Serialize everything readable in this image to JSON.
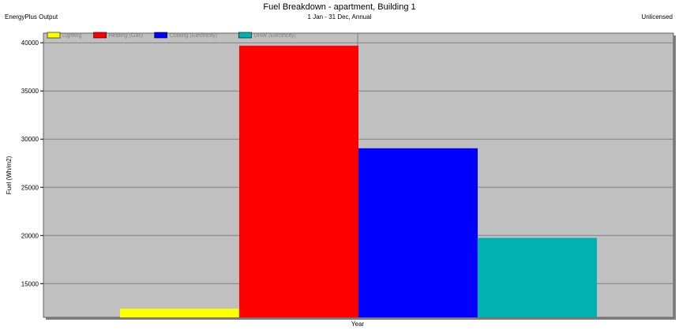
{
  "header": {
    "title": "Fuel Breakdown - apartment, Building 1",
    "subtitle": "1 Jan - 31 Dec, Annual",
    "left_label": "EnergyPlus Output",
    "right_label": "Unlicensed"
  },
  "chart_data": {
    "type": "bar",
    "title": "Fuel Breakdown - apartment, Building 1",
    "subtitle": "1 Jan - 31 Dec, Annual",
    "xlabel": "Year",
    "ylabel": "Fuel (Wh/m2)",
    "categories": [
      "Year"
    ],
    "ylim": [
      11500,
      41000
    ],
    "yticks": [
      15000,
      20000,
      25000,
      30000,
      35000,
      40000
    ],
    "grid": true,
    "legend": "top-left",
    "series": [
      {
        "name": "Lighting",
        "values": [
          12400
        ],
        "color": "#ffff00"
      },
      {
        "name": "Heating (Gas)",
        "values": [
          39700
        ],
        "color": "#ff0000"
      },
      {
        "name": "Cooling (Electricity)",
        "values": [
          29050
        ],
        "color": "#0000ff"
      },
      {
        "name": "DHW (Electricity)",
        "values": [
          19750
        ],
        "color": "#00b2b2"
      }
    ]
  }
}
